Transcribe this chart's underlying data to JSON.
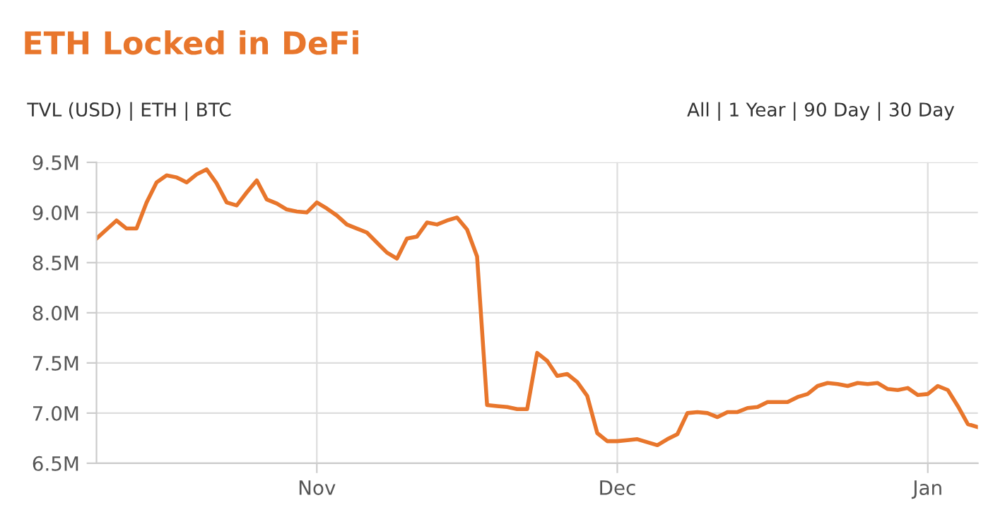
{
  "chart_data": {
    "type": "line",
    "title": "ETH Locked in DeFi",
    "annotations": [
      "TVL (USD) | ETH | BTC",
      "All | 1 Year | 90 Day | 30 Day"
    ],
    "categories": [
      null,
      null,
      null,
      null,
      null,
      null,
      null,
      null,
      null,
      null,
      null,
      null,
      null,
      null,
      null,
      null,
      null,
      null,
      null,
      null,
      null,
      null,
      "Nov",
      null,
      null,
      null,
      null,
      null,
      null,
      null,
      null,
      null,
      null,
      null,
      null,
      null,
      null,
      null,
      null,
      null,
      null,
      null,
      null,
      null,
      null,
      null,
      null,
      null,
      null,
      null,
      null,
      null,
      "Dec",
      null,
      null,
      null,
      null,
      null,
      null,
      null,
      null,
      null,
      null,
      null,
      null,
      null,
      null,
      null,
      null,
      null,
      null,
      null,
      null,
      null,
      null,
      null,
      null,
      null,
      null,
      null,
      null,
      null,
      null,
      "Jan",
      null,
      null,
      null,
      null,
      null
    ],
    "series": [
      {
        "color": "#e8762c",
        "values": [
          8.74,
          8.83,
          8.92,
          8.84,
          8.84,
          9.1,
          9.3,
          9.37,
          9.35,
          9.3,
          9.38,
          9.43,
          9.29,
          9.1,
          9.07,
          9.2,
          9.32,
          9.13,
          9.09,
          9.03,
          9.01,
          9.0,
          9.1,
          9.04,
          8.97,
          8.88,
          8.84,
          8.8,
          8.7,
          8.6,
          8.54,
          8.74,
          8.76,
          8.9,
          8.88,
          8.92,
          8.95,
          8.83,
          8.56,
          7.08,
          7.07,
          7.06,
          7.04,
          7.04,
          7.6,
          7.52,
          7.37,
          7.39,
          7.31,
          7.17,
          6.8,
          6.72,
          6.72,
          6.73,
          6.74,
          6.71,
          6.68,
          6.74,
          6.79,
          7.0,
          7.01,
          7.0,
          6.96,
          7.01,
          7.01,
          7.05,
          7.06,
          7.11,
          7.11,
          7.11,
          7.16,
          7.19,
          7.27,
          7.3,
          7.29,
          7.27,
          7.3,
          7.29,
          7.3,
          7.24,
          7.23,
          7.25,
          7.18,
          7.19,
          7.27,
          7.23,
          7.07,
          6.89,
          6.86
        ]
      }
    ],
    "ylim": [
      6.5,
      9.5
    ],
    "yticks": [
      {
        "value": 6.5,
        "label": "6.5M"
      },
      {
        "value": 7.0,
        "label": "7.0M"
      },
      {
        "value": 7.5,
        "label": "7.5M"
      },
      {
        "value": 8.0,
        "label": "8.0M"
      },
      {
        "value": 8.5,
        "label": "8.5M"
      },
      {
        "value": 9.0,
        "label": "9.0M"
      },
      {
        "value": 9.5,
        "label": "9.5M"
      }
    ],
    "grid": true,
    "marker": "none",
    "line_style": "solid"
  }
}
